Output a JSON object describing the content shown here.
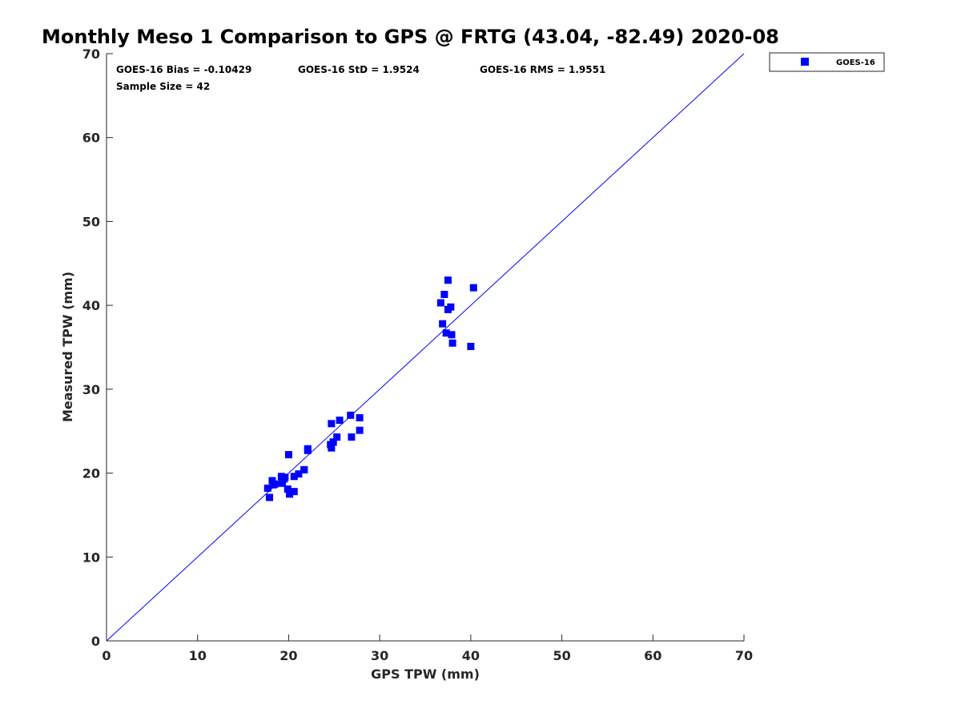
{
  "chart_data": {
    "type": "scatter",
    "title": "Monthly Meso 1 Comparison to GPS @ FRTG (43.04, -82.49) 2020-08",
    "xlabel": "GPS TPW (mm)",
    "ylabel": "Measured TPW (mm)",
    "xlim": [
      0,
      70
    ],
    "ylim": [
      0,
      70
    ],
    "xticks": [
      0,
      10,
      20,
      30,
      40,
      50,
      60,
      70
    ],
    "yticks": [
      0,
      10,
      20,
      30,
      40,
      50,
      60,
      70
    ],
    "grid": false,
    "legend_position": "outside top-right",
    "reference_line": {
      "x": [
        0,
        70
      ],
      "y": [
        0,
        70
      ],
      "color": "#0000ff"
    },
    "annotations": [
      "GOES-16 Bias = -0.10429",
      "GOES-16 StD = 1.9524",
      "GOES-16 RMS = 1.9551",
      "Sample Size = 42"
    ],
    "series": [
      {
        "name": "GOES-16",
        "color": "#0000ff",
        "marker": "square",
        "points": [
          [
            17.7,
            18.2
          ],
          [
            17.9,
            17.1
          ],
          [
            18.2,
            19.1
          ],
          [
            18.3,
            18.6
          ],
          [
            18.5,
            18.7
          ],
          [
            19.2,
            19.6
          ],
          [
            19.3,
            18.8
          ],
          [
            19.5,
            19.3
          ],
          [
            19.6,
            19.5
          ],
          [
            19.9,
            18.1
          ],
          [
            20.0,
            22.2
          ],
          [
            20.1,
            17.5
          ],
          [
            20.6,
            19.6
          ],
          [
            20.6,
            17.8
          ],
          [
            21.1,
            19.9
          ],
          [
            21.7,
            20.4
          ],
          [
            22.1,
            22.9
          ],
          [
            22.1,
            22.7
          ],
          [
            24.6,
            23.4
          ],
          [
            24.7,
            25.9
          ],
          [
            24.7,
            23.0
          ],
          [
            24.9,
            23.7
          ],
          [
            25.3,
            24.3
          ],
          [
            25.6,
            26.3
          ],
          [
            26.8,
            26.9
          ],
          [
            26.9,
            24.3
          ],
          [
            27.8,
            26.6
          ],
          [
            27.8,
            25.1
          ],
          [
            36.7,
            40.3
          ],
          [
            36.9,
            37.8
          ],
          [
            37.1,
            41.3
          ],
          [
            37.3,
            36.7
          ],
          [
            37.5,
            43.0
          ],
          [
            37.5,
            39.5
          ],
          [
            37.8,
            39.8
          ],
          [
            37.9,
            36.5
          ],
          [
            38.0,
            35.5
          ],
          [
            40.0,
            35.1
          ],
          [
            40.3,
            42.1
          ],
          [
            24.9,
            23.7
          ],
          [
            19.3,
            18.8
          ],
          [
            21.7,
            20.4
          ]
        ]
      }
    ]
  }
}
